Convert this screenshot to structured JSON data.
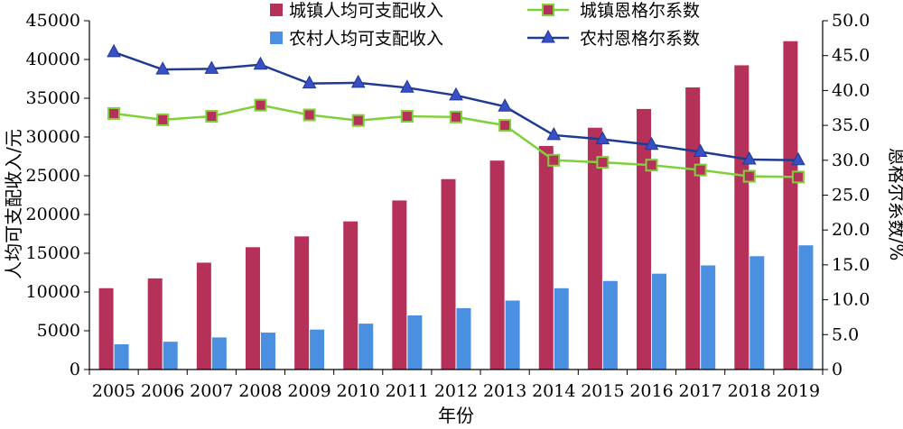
{
  "chart_data": {
    "type": "bar",
    "categories": [
      "2005",
      "2006",
      "2007",
      "2008",
      "2009",
      "2010",
      "2011",
      "2012",
      "2013",
      "2014",
      "2015",
      "2016",
      "2017",
      "2018",
      "2019"
    ],
    "xlabel": "年份",
    "ylabel_left": "人均可支配收入/元",
    "ylabel_right": "恩格尔系数/%",
    "ylim_left": [
      0,
      45000
    ],
    "ylim_right": [
      0,
      50.0
    ],
    "yticks_left": [
      "0",
      "5000",
      "10000",
      "15000",
      "20000",
      "25000",
      "30000",
      "35000",
      "40000",
      "45000"
    ],
    "yticks_right": [
      "0",
      "5.0",
      "10.0",
      "15.0",
      "20.0",
      "25.0",
      "30.0",
      "35.0",
      "40.0",
      "45.0",
      "50.0"
    ],
    "legend_position": "top",
    "grid": false,
    "bar_series": [
      {
        "name": "城镇人均可支配收入",
        "color": "#b5315a",
        "values": [
          10493,
          11759,
          13786,
          15781,
          17175,
          19109,
          21810,
          24565,
          26955,
          28844,
          31195,
          33616,
          36396,
          39251,
          42359
        ]
      },
      {
        "name": "农村人均可支配收入",
        "color": "#4a8fe0",
        "values": [
          3255,
          3587,
          4140,
          4761,
          5153,
          5919,
          6977,
          7917,
          8896,
          10489,
          11422,
          12363,
          13432,
          14617,
          16021
        ]
      }
    ],
    "line_series": [
      {
        "name": "城镇恩格尔系数",
        "color": "#7fd13a",
        "marker_color": "#b5315a",
        "marker": "square",
        "values": [
          36.7,
          35.8,
          36.3,
          37.9,
          36.5,
          35.7,
          36.3,
          36.2,
          35.0,
          30.0,
          29.7,
          29.3,
          28.6,
          27.7,
          27.6
        ]
      },
      {
        "name": "农村恩格尔系数",
        "color": "#1f3a93",
        "marker_color": "#3b4fc4",
        "marker": "triangle",
        "values": [
          45.5,
          43.0,
          43.1,
          43.7,
          41.0,
          41.1,
          40.4,
          39.3,
          37.7,
          33.6,
          33.0,
          32.2,
          31.2,
          30.1,
          30.0
        ]
      }
    ]
  }
}
